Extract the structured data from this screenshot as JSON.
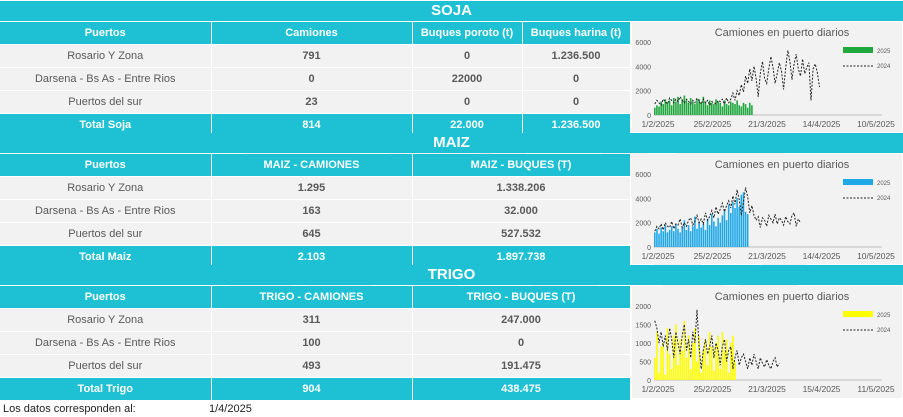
{
  "soja": {
    "title": "SOJA",
    "headers": [
      "Puertos",
      "Camiones",
      "Buques poroto (t)",
      "Buques harina (t)"
    ],
    "rows": [
      [
        "Rosario Y Zona",
        "791",
        "0",
        "1.236.500"
      ],
      [
        "Darsena - Bs As - Entre Rios",
        "0",
        "22000",
        "0"
      ],
      [
        "Puertos del sur",
        "23",
        "0",
        "0"
      ]
    ],
    "total": [
      "Total Soja",
      "814",
      "22.000",
      "1.236.500"
    ]
  },
  "maiz": {
    "title": "MAIZ",
    "headers": [
      "Puertos",
      "MAIZ - CAMIONES",
      "MAIZ - BUQUES (T)"
    ],
    "rows": [
      [
        "Rosario Y Zona",
        "1.295",
        "1.338.206"
      ],
      [
        "Darsena - Bs As - Entre Rios",
        "163",
        "32.000"
      ],
      [
        "Puertos del sur",
        "645",
        "527.532"
      ]
    ],
    "total": [
      "Total Maiz",
      "2.103",
      "1.897.738"
    ]
  },
  "trigo": {
    "title": "TRIGO",
    "headers": [
      "Puertos",
      "TRIGO - CAMIONES",
      "TRIGO - BUQUES (T)"
    ],
    "rows": [
      [
        "Rosario Y Zona",
        "311",
        "247.000"
      ],
      [
        "Darsena - Bs As - Entre Rios",
        "100",
        "0"
      ],
      [
        "Puertos del sur",
        "493",
        "191.475"
      ]
    ],
    "total": [
      "Total Trigo",
      "904",
      "438.475"
    ]
  },
  "footer": {
    "label": "Los datos corresponden al:",
    "date": "1/4/2025"
  },
  "colors": {
    "accent": "#1ec1d4",
    "soja": "#1fa83e",
    "maiz": "#1ea8e8",
    "trigo": "#ffff00"
  },
  "chart_data": [
    {
      "type": "bar",
      "title": "Camiones en puerto diarios",
      "x_tick_labels": [
        "1/2/2025",
        "25/2/2025",
        "21/3/2025",
        "14/4/2025",
        "10/5/2025"
      ],
      "ylim": [
        0,
        6000
      ],
      "y_ticks": [
        0,
        2000,
        4000,
        6000
      ],
      "legend_position": "top-right",
      "series": [
        {
          "name": "2025",
          "style": "bars",
          "color": "#1fa83e",
          "values": [
            600,
            800,
            700,
            1100,
            900,
            1300,
            1000,
            1200,
            800,
            1400,
            1100,
            1500,
            900,
            1300,
            1600,
            1200,
            1000,
            1400,
            1100,
            900,
            1200,
            1300,
            1000,
            1500,
            1100,
            800,
            1200,
            1000,
            900,
            1300,
            1100,
            1000,
            700,
            1200,
            900,
            800,
            1100,
            1000,
            900,
            1200,
            800,
            700,
            1000,
            900,
            600,
            1000,
            800
          ]
        },
        {
          "name": "2024",
          "style": "dashed-line",
          "color": "#222222",
          "values": [
            900,
            1200,
            1000,
            800,
            1300,
            1100,
            900,
            1400,
            1200,
            1000,
            1300,
            1100,
            1500,
            1200,
            1000,
            1300,
            1100,
            900,
            1200,
            1000,
            1400,
            1100,
            900,
            1300,
            1000,
            1200,
            800,
            1100,
            1000,
            900,
            1200,
            1100,
            1300,
            900,
            1400,
            1000,
            1300,
            1800,
            1200,
            2000,
            1600,
            2500,
            1900,
            3200,
            2600,
            3800,
            2800,
            4000,
            3000,
            1500,
            3400,
            4400,
            3000,
            2600,
            3800,
            4800,
            3900,
            2600,
            3400,
            4300,
            3600,
            2100,
            3900,
            5300,
            4400,
            2900,
            4200,
            5000,
            3800,
            3200,
            4600,
            3400,
            3900,
            4300,
            1200,
            3800,
            4200,
            3500,
            2300
          ]
        }
      ]
    },
    {
      "type": "bar",
      "title": "Camiones en puerto diarios",
      "x_tick_labels": [
        "1/2/2025",
        "25/2/2025",
        "21/3/2025",
        "14/4/2025",
        "10/5/2025"
      ],
      "ylim": [
        0,
        6000
      ],
      "y_ticks": [
        0,
        2000,
        4000,
        6000
      ],
      "legend_position": "top-right",
      "series": [
        {
          "name": "2025",
          "style": "bars",
          "color": "#1ea8e8",
          "values": [
            1200,
            1500,
            1100,
            1600,
            1300,
            1800,
            1200,
            1400,
            1700,
            1300,
            1900,
            1500,
            1200,
            1600,
            2200,
            1400,
            1800,
            1300,
            1700,
            2500,
            1500,
            2100,
            1600,
            1900,
            1400,
            2300,
            1800,
            2700,
            2100,
            1700,
            2400,
            2000,
            2600,
            3000,
            2200,
            3500,
            2800,
            3700,
            3200,
            4000,
            3300,
            4300,
            4500,
            2900,
            2700
          ]
        },
        {
          "name": "2024",
          "style": "dashed-line",
          "color": "#222222",
          "values": [
            1300,
            1700,
            1500,
            1900,
            1400,
            2000,
            1700,
            1600,
            2100,
            1500,
            1900,
            1800,
            2300,
            1600,
            2000,
            1700,
            2200,
            2400,
            1800,
            2100,
            2600,
            2000,
            2300,
            1900,
            2800,
            2200,
            2500,
            3000,
            2400,
            3300,
            2700,
            3100,
            3600,
            2900,
            3400,
            3800,
            3200,
            4200,
            3500,
            4700,
            3900,
            2600,
            3700,
            4900,
            4100,
            2800,
            3400,
            2600,
            2200,
            2500,
            1600,
            2400,
            2200,
            1700,
            2600,
            2300,
            2000,
            2700,
            1900,
            2400,
            2200,
            1800,
            2500,
            2100,
            1900,
            2600,
            2800,
            1700,
            2300,
            2000
          ]
        }
      ]
    },
    {
      "type": "bar",
      "title": "Camiones en puerto diarios",
      "x_tick_labels": [
        "1/2/2025",
        "25/2/2025",
        "21/3/2025",
        "15/4/2025",
        "11/5/2025"
      ],
      "ylim": [
        0,
        2000
      ],
      "y_ticks": [
        0,
        500,
        1000,
        1500,
        2000
      ],
      "legend_position": "top-right",
      "series": [
        {
          "name": "2025",
          "style": "bars",
          "color": "#ffff00",
          "values": [
            600,
            1300,
            200,
            900,
            1000,
            150,
            1400,
            700,
            300,
            1200,
            1500,
            400,
            1100,
            800,
            1600,
            600,
            1200,
            300,
            1000,
            1400,
            500,
            1200,
            200,
            800,
            1100,
            400,
            1300,
            900,
            250,
            1000,
            1200,
            300,
            1300,
            800,
            1100,
            200,
            1000,
            1200,
            500
          ]
        },
        {
          "name": "2024",
          "style": "dashed-line",
          "color": "#222222",
          "values": [
            1600,
            1400,
            1000,
            1300,
            900,
            1200,
            800,
            1400,
            1100,
            600,
            1300,
            1000,
            700,
            1200,
            1500,
            800,
            1100,
            600,
            1300,
            1000,
            1900,
            900,
            300,
            800,
            1100,
            700,
            900,
            1200,
            600,
            1000,
            800,
            400,
            900,
            1100,
            500,
            800,
            900,
            300,
            600,
            800,
            400,
            600,
            700,
            500,
            300,
            600,
            400,
            700,
            500,
            300,
            600,
            450,
            350,
            550,
            400,
            300,
            500,
            600,
            350,
            450
          ]
        }
      ]
    }
  ]
}
